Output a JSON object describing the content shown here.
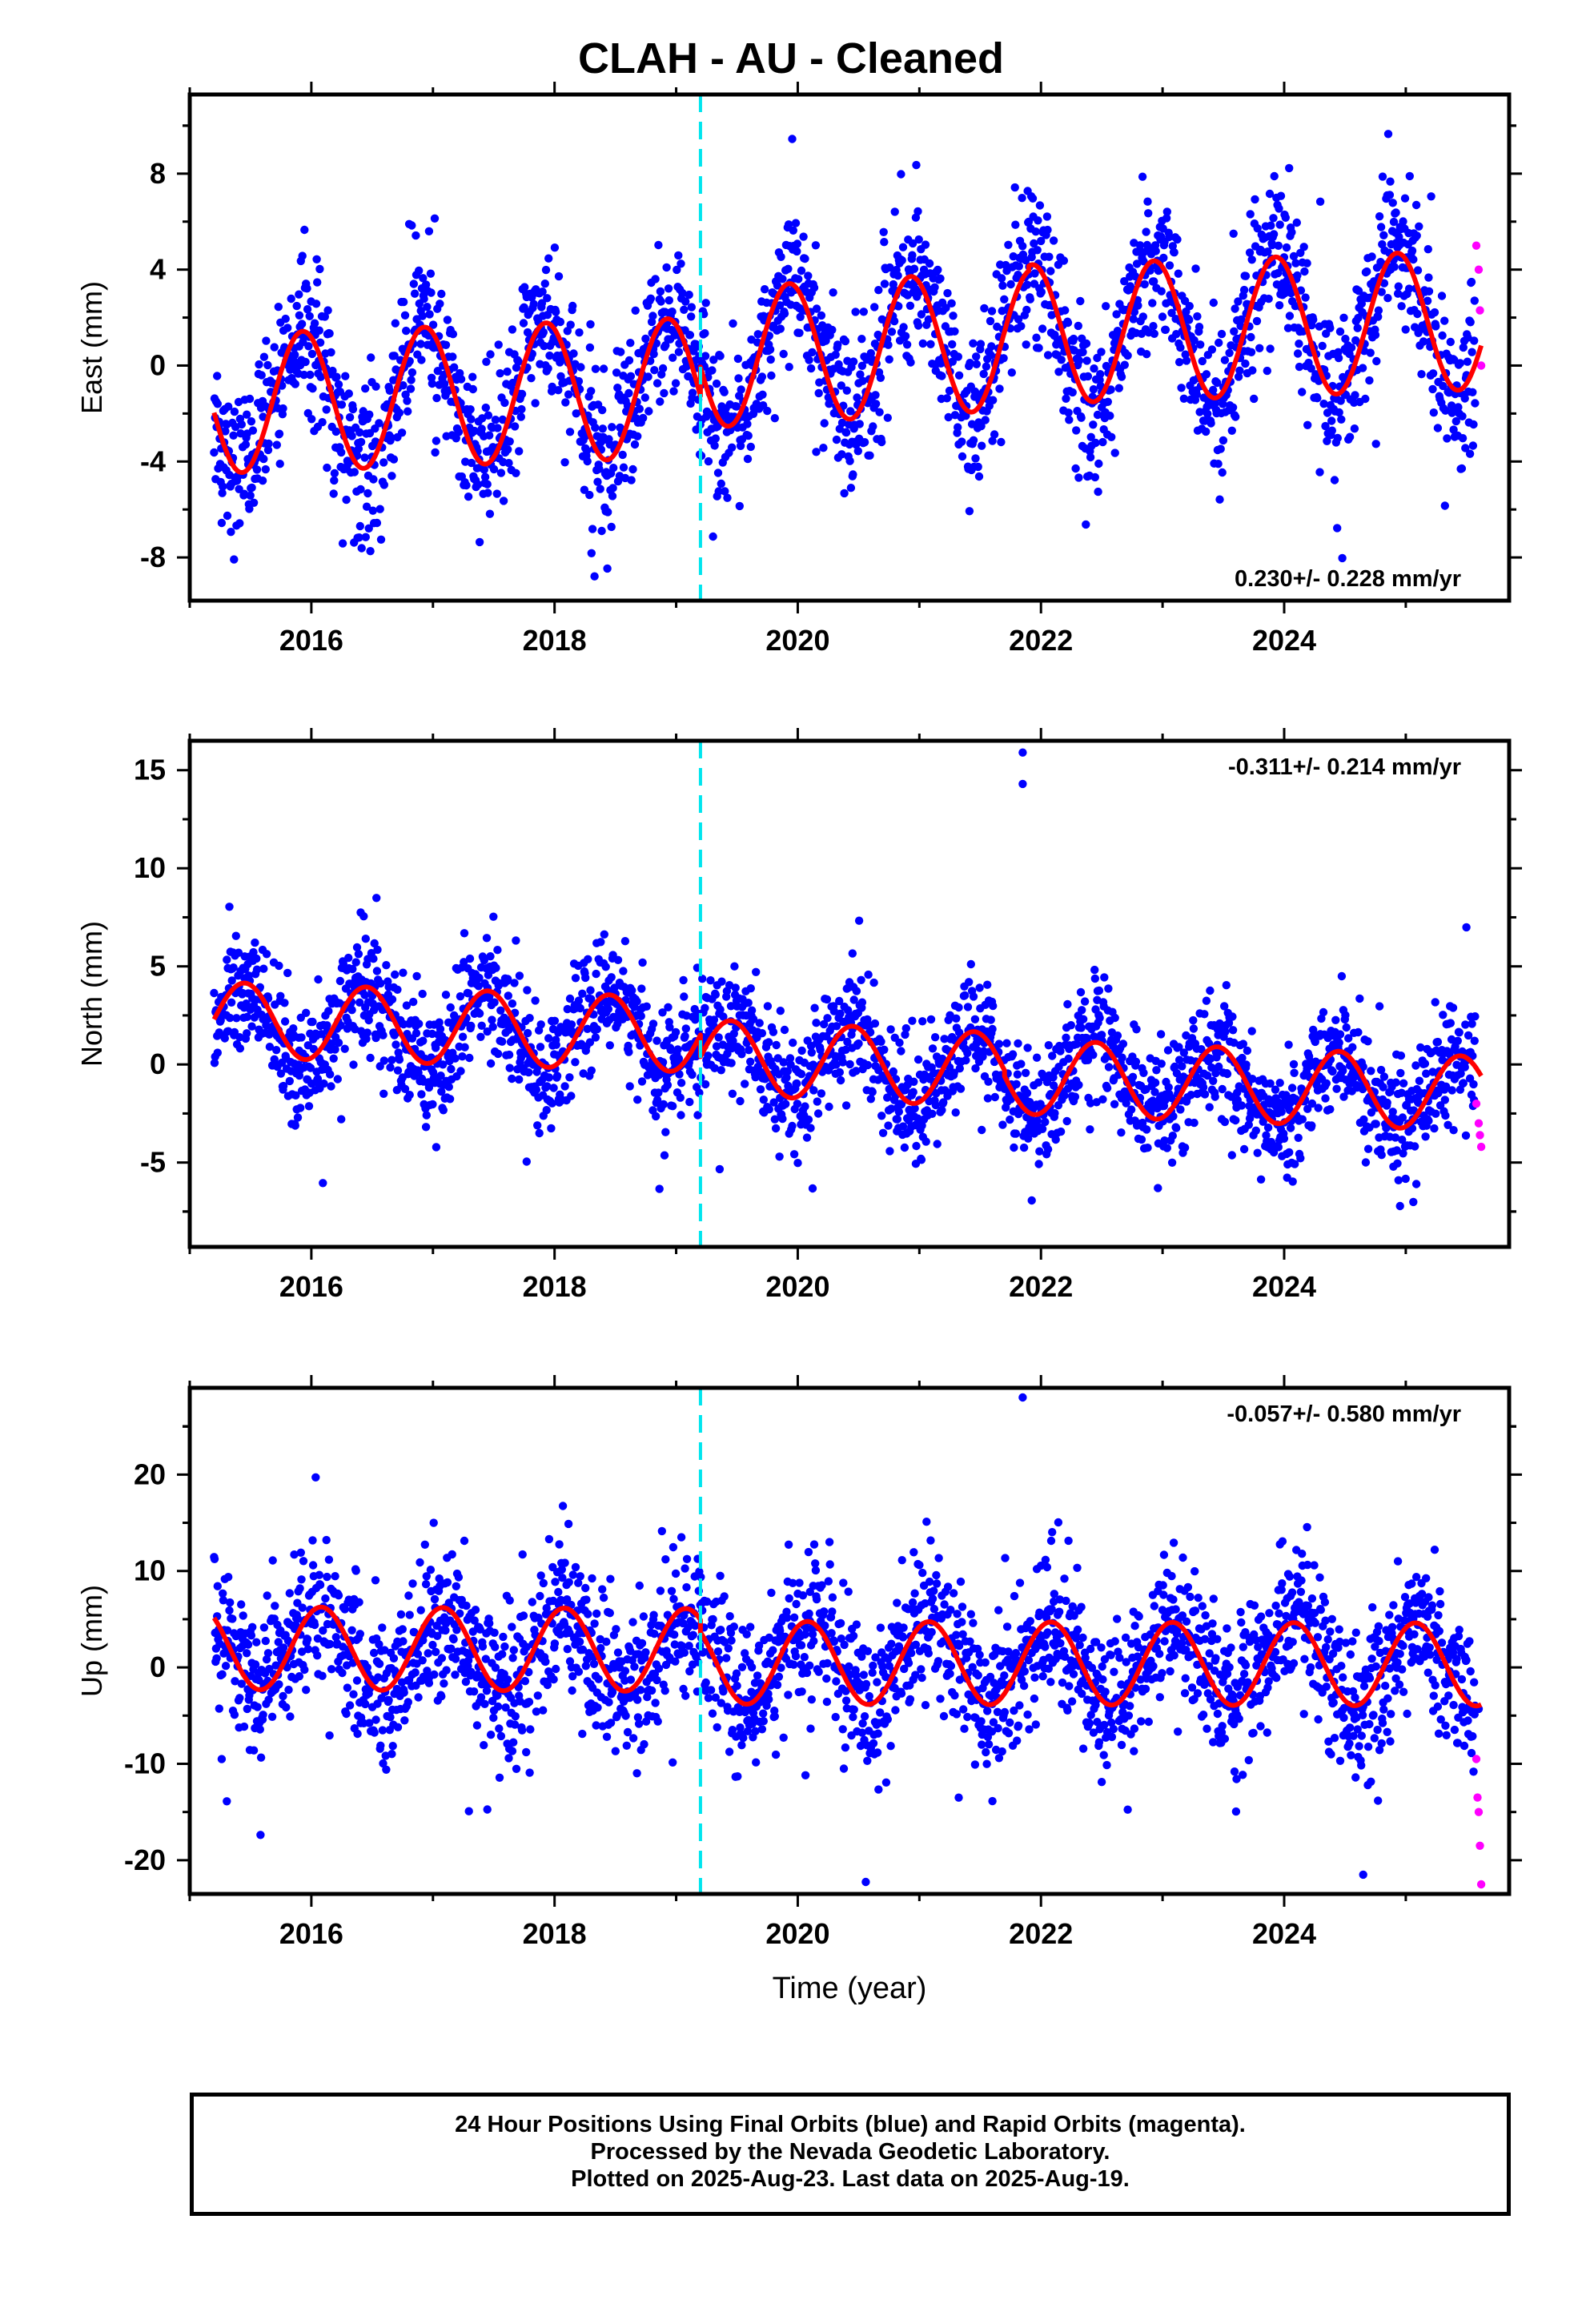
{
  "title": "CLAH  - AU - Cleaned",
  "colors": {
    "final_orbits": "#0000ff",
    "rapid_orbits": "#ff00ff",
    "model_fit": "#ff0000",
    "antenna_change_line": "#00e5ee",
    "axis": "#000000"
  },
  "footer": {
    "line1": "24 Hour Positions Using Final Orbits (blue) and Rapid Orbits (magenta).",
    "line2": "Processed by the Nevada Geodetic Laboratory.",
    "line3": "Plotted on 2025-Aug-23. Last data on 2025-Aug-19."
  },
  "chart_data": [
    {
      "type": "scatter",
      "component": "East",
      "ylabel": "East (mm)",
      "xlabel": "",
      "xlim": [
        2015.0,
        2025.85
      ],
      "ylim": [
        -9.8,
        11.3
      ],
      "xticks": [
        2016,
        2018,
        2020,
        2022,
        2024
      ],
      "xtick_labels": [
        "2016",
        "2018",
        "2020",
        "2022",
        "2024"
      ],
      "yticks": [
        -8,
        -4,
        0,
        4,
        8
      ],
      "ytick_labels": [
        "-8",
        "-4",
        "0",
        "4",
        "8"
      ],
      "rate_label": "0.230+/- 0.228 mm/yr",
      "rate_label_position": "bottom-right",
      "vertical_marker_x": 2019.2,
      "data_start": 2015.2,
      "data_end": 2025.62,
      "rapid_start": 2025.57,
      "model": {
        "annual_amplitude": 2.9,
        "peak_year_fraction": 0.93,
        "segments": [
          {
            "from": 2015.2,
            "to": 2019.2,
            "offset_start": -1.6,
            "offset_end": -0.9
          },
          {
            "from": 2019.2,
            "to": 2021.9,
            "offset_start": 0.3,
            "offset_end": 1.1
          },
          {
            "from": 2021.9,
            "to": 2025.62,
            "offset_start": 1.3,
            "offset_end": 1.9
          }
        ]
      },
      "scatter_sigma": 1.6,
      "series": [
        {
          "name": "Final Orbits",
          "values_sampled": [
            [
              2015.3,
              -3.5
            ],
            [
              2015.6,
              -4.8
            ],
            [
              2015.9,
              0.8
            ],
            [
              2016.2,
              -0.5
            ],
            [
              2016.5,
              -3.8
            ],
            [
              2016.9,
              0.9
            ],
            [
              2017.5,
              -3.6
            ],
            [
              2017.9,
              1.3
            ],
            [
              2018.5,
              -3.3
            ],
            [
              2018.9,
              1.6
            ],
            [
              2019.4,
              -2.1
            ],
            [
              2019.9,
              3.2
            ],
            [
              2020.5,
              -1.6
            ],
            [
              2020.9,
              3.4
            ],
            [
              2021.5,
              -1.3
            ],
            [
              2021.9,
              3.8
            ],
            [
              2022.5,
              -1.1
            ],
            [
              2022.9,
              4.1
            ],
            [
              2023.5,
              -0.9
            ],
            [
              2023.9,
              4.3
            ],
            [
              2024.5,
              -0.7
            ],
            [
              2024.9,
              4.4
            ],
            [
              2025.5,
              -0.4
            ]
          ]
        },
        {
          "name": "Rapid Orbits",
          "values_sampled": [
            [
              2025.58,
              5.0
            ],
            [
              2025.6,
              4.0
            ],
            [
              2025.61,
              2.3
            ],
            [
              2025.62,
              0.0
            ]
          ]
        }
      ]
    },
    {
      "type": "scatter",
      "component": "North",
      "ylabel": "North (mm)",
      "xlabel": "",
      "xlim": [
        2015.0,
        2025.85
      ],
      "ylim": [
        -9.3,
        16.5
      ],
      "xticks": [
        2016,
        2018,
        2020,
        2022,
        2024
      ],
      "xtick_labels": [
        "2016",
        "2018",
        "2020",
        "2022",
        "2024"
      ],
      "yticks": [
        -5,
        0,
        5,
        10,
        15
      ],
      "ytick_labels": [
        "-5",
        "0",
        "5",
        "10",
        "15"
      ],
      "rate_label": "-0.311+/- 0.214 mm/yr",
      "rate_label_position": "top-right",
      "vertical_marker_x": 2019.2,
      "data_start": 2015.2,
      "data_end": 2025.62,
      "rapid_start": 2025.57,
      "model": {
        "annual_amplitude": 1.9,
        "peak_year_fraction": 0.45,
        "segments": [
          {
            "from": 2015.2,
            "to": 2019.2,
            "offset_start": 2.3,
            "offset_end": 1.5
          },
          {
            "from": 2019.2,
            "to": 2021.7,
            "offset_start": 0.4,
            "offset_end": -0.3
          },
          {
            "from": 2021.7,
            "to": 2025.62,
            "offset_start": -0.6,
            "offset_end": -1.5
          }
        ]
      },
      "scatter_sigma": 1.5,
      "series": [
        {
          "name": "Final Orbits",
          "values_sampled": [
            [
              2015.45,
              4.4
            ],
            [
              2015.9,
              0.7
            ],
            [
              2016.45,
              4.2
            ],
            [
              2016.9,
              0.4
            ],
            [
              2017.45,
              3.9
            ],
            [
              2017.9,
              0.1
            ],
            [
              2018.45,
              3.6
            ],
            [
              2018.9,
              -0.3
            ],
            [
              2019.45,
              2.2
            ],
            [
              2019.9,
              -1.6
            ],
            [
              2020.45,
              1.8
            ],
            [
              2020.9,
              -1.8
            ],
            [
              2021.45,
              1.6
            ],
            [
              2021.9,
              -2.2
            ],
            [
              2022.45,
              1.3
            ],
            [
              2022.9,
              -2.5
            ],
            [
              2023.45,
              1.0
            ],
            [
              2023.9,
              -2.8
            ],
            [
              2024.45,
              0.7
            ],
            [
              2024.9,
              -3.2
            ],
            [
              2025.45,
              0.4
            ],
            [
              2021.85,
              15.9
            ],
            [
              2021.85,
              14.3
            ]
          ]
        },
        {
          "name": "Rapid Orbits",
          "values_sampled": [
            [
              2025.58,
              -2.0
            ],
            [
              2025.6,
              -3.0
            ],
            [
              2025.61,
              -3.6
            ],
            [
              2025.62,
              -4.2
            ]
          ]
        }
      ]
    },
    {
      "type": "scatter",
      "component": "Up",
      "ylabel": "Up (mm)",
      "xlabel": "Time (year)",
      "xlim": [
        2015.0,
        2025.85
      ],
      "ylim": [
        -23.5,
        29
      ],
      "xticks": [
        2016,
        2018,
        2020,
        2022,
        2024
      ],
      "xtick_labels": [
        "2016",
        "2018",
        "2020",
        "2022",
        "2024"
      ],
      "yticks": [
        -20,
        -10,
        0,
        10,
        20
      ],
      "ytick_labels": [
        "-20",
        "-10",
        "0",
        "10",
        "20"
      ],
      "rate_label": "-0.057+/- 0.580 mm/yr",
      "rate_label_position": "top-right",
      "vertical_marker_x": 2019.2,
      "data_start": 2015.2,
      "data_end": 2025.62,
      "rapid_start": 2025.57,
      "model": {
        "annual_amplitude": 4.3,
        "peak_year_fraction": 0.08,
        "segments": [
          {
            "from": 2015.2,
            "to": 2019.2,
            "offset_start": 2.0,
            "offset_end": 1.8
          },
          {
            "from": 2019.2,
            "to": 2025.62,
            "offset_start": 0.5,
            "offset_end": 0.3
          }
        ]
      },
      "scatter_sigma": 3.8,
      "series": [
        {
          "name": "Final Orbits",
          "values_sampled": [
            [
              2015.6,
              -2.3
            ],
            [
              2016.1,
              6.3
            ],
            [
              2016.6,
              -2.4
            ],
            [
              2017.1,
              6.2
            ],
            [
              2017.6,
              -2.4
            ],
            [
              2018.1,
              6.1
            ],
            [
              2018.6,
              -2.5
            ],
            [
              2019.1,
              6.0
            ],
            [
              2019.6,
              -3.5
            ],
            [
              2020.1,
              4.8
            ],
            [
              2020.6,
              -3.7
            ],
            [
              2021.1,
              4.7
            ],
            [
              2021.6,
              -3.8
            ],
            [
              2022.1,
              4.6
            ],
            [
              2022.6,
              -3.9
            ],
            [
              2023.1,
              4.6
            ],
            [
              2023.6,
              -4.0
            ],
            [
              2024.1,
              4.5
            ],
            [
              2024.6,
              -4.1
            ],
            [
              2025.1,
              4.4
            ],
            [
              2025.6,
              -4.3
            ],
            [
              2021.85,
              28.0
            ],
            [
              2024.65,
              -21.5
            ]
          ]
        },
        {
          "name": "Rapid Orbits",
          "values_sampled": [
            [
              2025.58,
              -9.5
            ],
            [
              2025.59,
              -13.5
            ],
            [
              2025.6,
              -15.0
            ],
            [
              2025.61,
              -18.5
            ],
            [
              2025.62,
              -22.5
            ]
          ]
        }
      ]
    }
  ]
}
